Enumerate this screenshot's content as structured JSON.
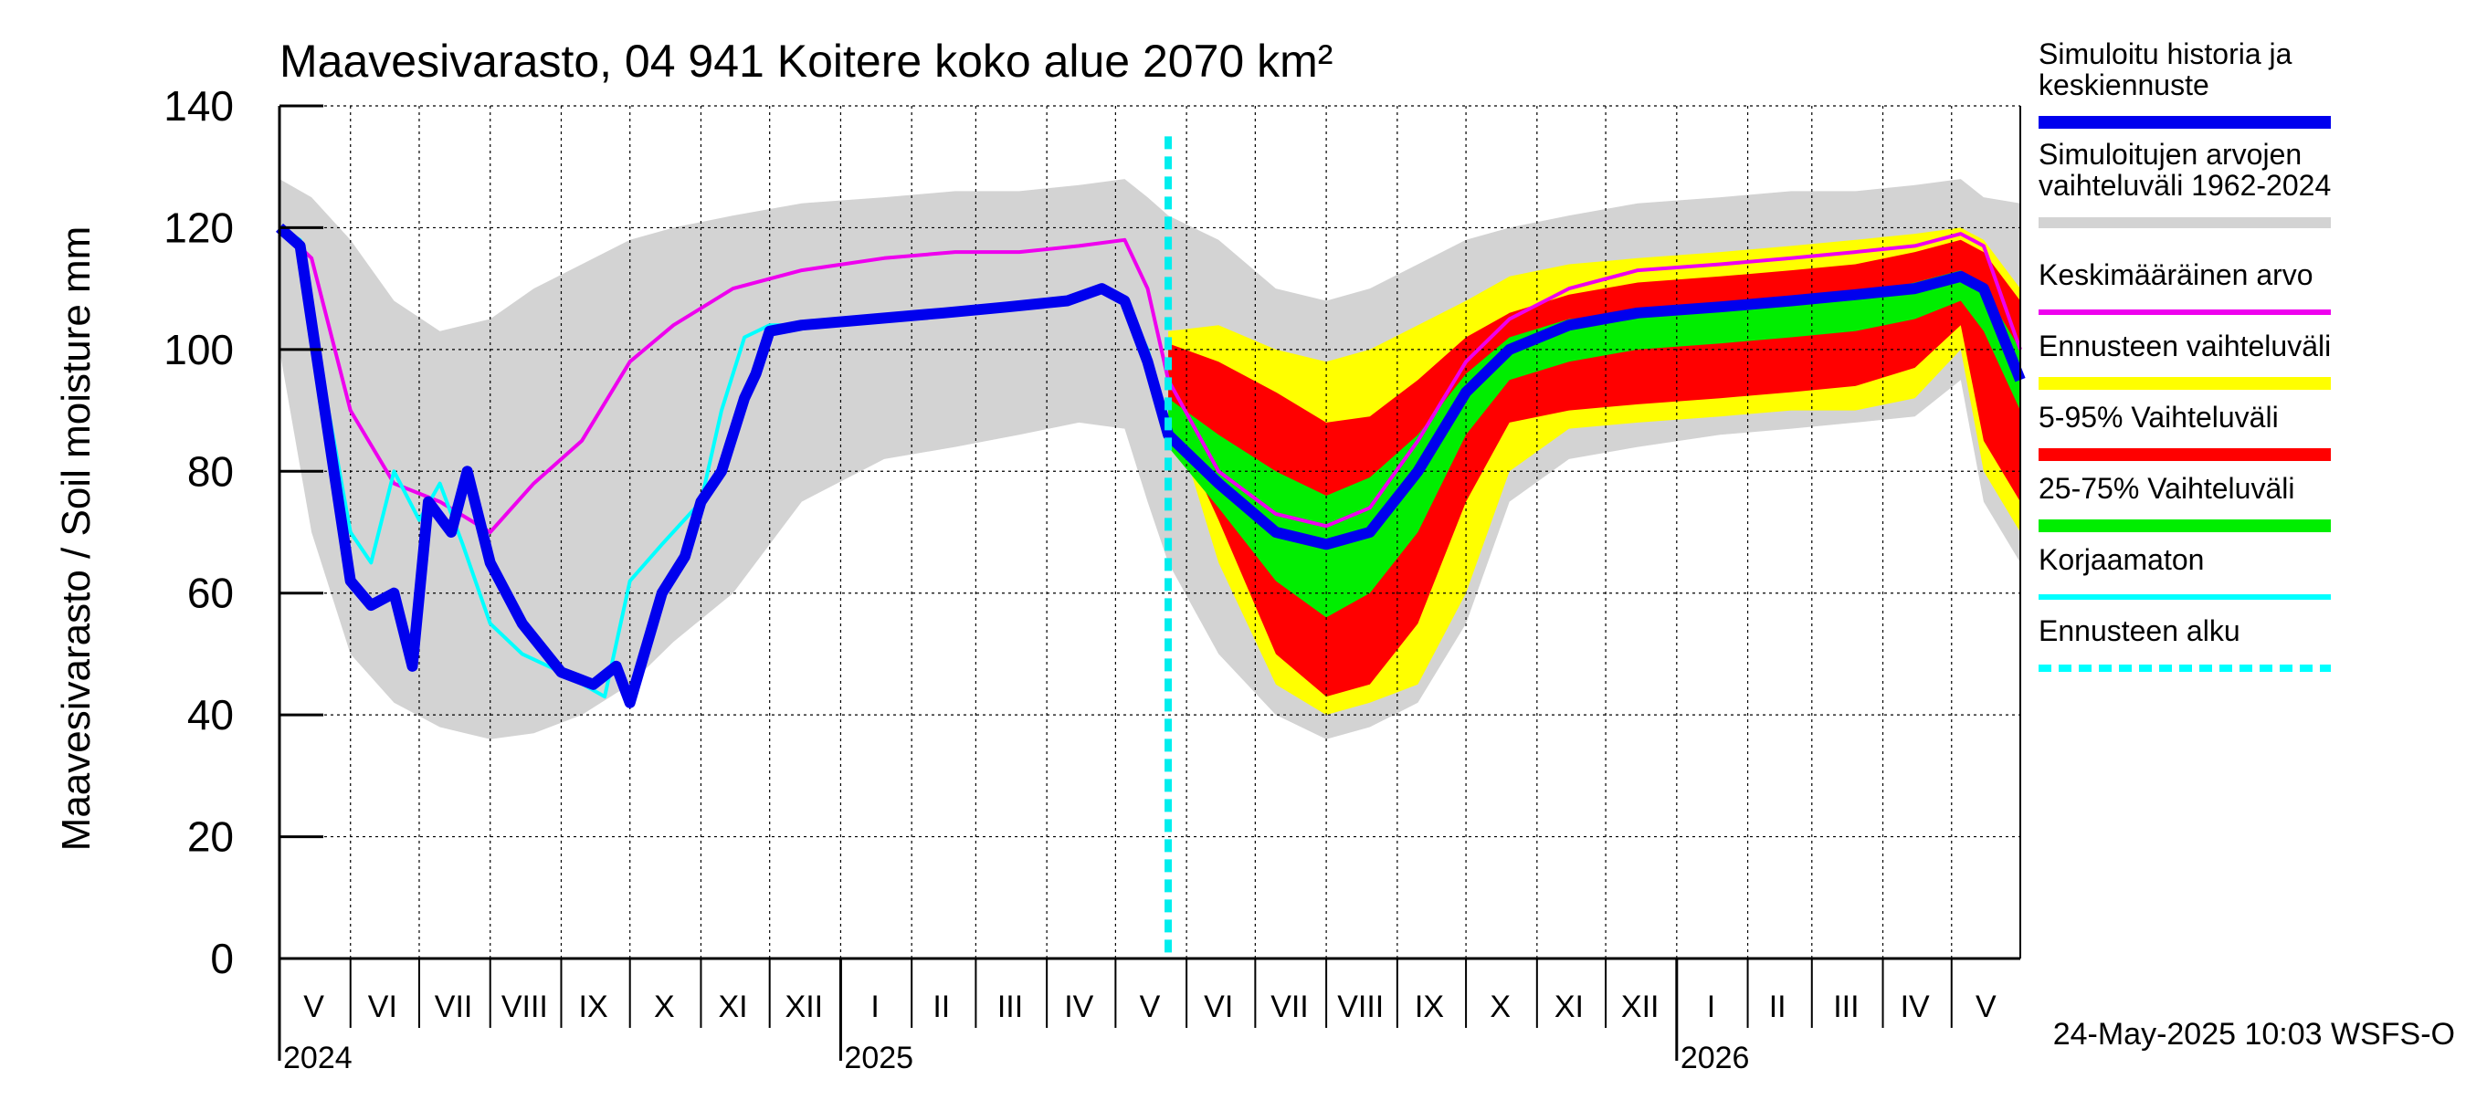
{
  "chart_data": {
    "type": "area",
    "title": "Maavesivarasto, 04 941 Koitere koko alue 2070 km²",
    "ylabel": "Maavesivarasto / Soil moisture   mm",
    "ylim": [
      0,
      140
    ],
    "yticks": [
      0,
      20,
      40,
      60,
      80,
      100,
      120,
      140
    ],
    "xlim": [
      "2024-05-01",
      "2026-05-31"
    ],
    "months": [
      {
        "label": "V",
        "mid": "2024-05-16"
      },
      {
        "label": "VI",
        "mid": "2024-06-15"
      },
      {
        "label": "VII",
        "mid": "2024-07-16"
      },
      {
        "label": "VIII",
        "mid": "2024-08-16"
      },
      {
        "label": "IX",
        "mid": "2024-09-15"
      },
      {
        "label": "X",
        "mid": "2024-10-16"
      },
      {
        "label": "XI",
        "mid": "2024-11-15"
      },
      {
        "label": "XII",
        "mid": "2024-12-16"
      },
      {
        "label": "I",
        "mid": "2025-01-16"
      },
      {
        "label": "II",
        "mid": "2025-02-14"
      },
      {
        "label": "III",
        "mid": "2025-03-16"
      },
      {
        "label": "IV",
        "mid": "2025-04-15"
      },
      {
        "label": "V",
        "mid": "2025-05-16"
      },
      {
        "label": "VI",
        "mid": "2025-06-15"
      },
      {
        "label": "VII",
        "mid": "2025-07-16"
      },
      {
        "label": "VIII",
        "mid": "2025-08-16"
      },
      {
        "label": "IX",
        "mid": "2025-09-15"
      },
      {
        "label": "X",
        "mid": "2025-10-16"
      },
      {
        "label": "XI",
        "mid": "2025-11-15"
      },
      {
        "label": "XII",
        "mid": "2025-12-16"
      },
      {
        "label": "I",
        "mid": "2026-01-16"
      },
      {
        "label": "II",
        "mid": "2026-02-14"
      },
      {
        "label": "III",
        "mid": "2026-03-16"
      },
      {
        "label": "IV",
        "mid": "2026-04-15"
      },
      {
        "label": "V",
        "mid": "2026-05-16"
      }
    ],
    "month_starts": [
      "2024-06-01",
      "2024-07-01",
      "2024-08-01",
      "2024-09-01",
      "2024-10-01",
      "2024-11-01",
      "2024-12-01",
      "2025-01-01",
      "2025-02-01",
      "2025-03-01",
      "2025-04-01",
      "2025-05-01",
      "2025-06-01",
      "2025-07-01",
      "2025-08-01",
      "2025-09-01",
      "2025-10-01",
      "2025-11-01",
      "2025-12-01",
      "2026-01-01",
      "2026-02-01",
      "2026-03-01",
      "2026-04-01",
      "2026-05-01"
    ],
    "years": [
      {
        "label": "2024",
        "start": "2024-05-01"
      },
      {
        "label": "2025",
        "start": "2025-01-01"
      },
      {
        "label": "2026",
        "start": "2026-01-01"
      }
    ],
    "forecast_start": "2025-05-24",
    "footer": "24-May-2025 10:03 WSFS-O",
    "legend": [
      {
        "label": "Simuloitu historia ja keskiennuste",
        "color": "#0000ee"
      },
      {
        "label": "Simuloitujen arvojen vaihteluväli 1962-2024",
        "color": "#d3d3d3"
      },
      {
        "label": "Keskimääräinen arvo",
        "color": "#ee00ee"
      },
      {
        "label": "Ennusteen vaihteluväli",
        "color": "#ffff00"
      },
      {
        "label": "5-95% Vaihteluväli",
        "color": "#ff0000"
      },
      {
        "label": "25-75% Vaihteluväli",
        "color": "#00ee00"
      },
      {
        "label": "Korjaamaton",
        "color": "#00ffff"
      },
      {
        "label": "Ennusteen alku",
        "color": "#00ffff"
      }
    ],
    "series": [
      {
        "name": "Simuloitujen arvojen vaihteluväli 1962-2024",
        "x": [
          "2024-05-01",
          "2024-05-15",
          "2024-06-01",
          "2024-06-20",
          "2024-07-10",
          "2024-08-01",
          "2024-08-20",
          "2024-09-10",
          "2024-10-01",
          "2024-10-20",
          "2024-11-15",
          "2024-12-15",
          "2025-01-20",
          "2025-02-20",
          "2025-03-20",
          "2025-04-15",
          "2025-05-05",
          "2025-05-15",
          "2025-05-24",
          "2025-06-15",
          "2025-07-10",
          "2025-08-01",
          "2025-08-20",
          "2025-09-10",
          "2025-10-01",
          "2025-10-20",
          "2025-11-15",
          "2025-12-15",
          "2026-01-20",
          "2026-02-20",
          "2026-03-20",
          "2026-04-15",
          "2026-05-05",
          "2026-05-15",
          "2026-05-31"
        ],
        "upper": [
          128,
          125,
          118,
          108,
          103,
          105,
          110,
          114,
          118,
          120,
          122,
          124,
          125,
          126,
          126,
          127,
          128,
          125,
          122,
          118,
          110,
          108,
          110,
          114,
          118,
          120,
          122,
          124,
          125,
          126,
          126,
          127,
          128,
          125,
          124
        ],
        "lower": [
          100,
          70,
          50,
          42,
          38,
          36,
          37,
          40,
          45,
          52,
          60,
          75,
          82,
          84,
          86,
          88,
          87,
          75,
          65,
          50,
          40,
          36,
          38,
          42,
          55,
          75,
          82,
          84,
          86,
          87,
          88,
          89,
          95,
          75,
          65
        ]
      },
      {
        "name": "Ennusteen vaihteluväli",
        "x": [
          "2025-05-24",
          "2025-06-15",
          "2025-07-10",
          "2025-08-01",
          "2025-08-20",
          "2025-09-10",
          "2025-10-01",
          "2025-10-20",
          "2025-11-15",
          "2025-12-15",
          "2026-01-20",
          "2026-02-20",
          "2026-03-20",
          "2026-04-15",
          "2026-05-05",
          "2026-05-15",
          "2026-05-31"
        ],
        "upper": [
          103,
          104,
          100,
          98,
          100,
          104,
          108,
          112,
          114,
          115,
          116,
          117,
          118,
          119,
          120,
          118,
          110
        ],
        "lower": [
          92,
          65,
          45,
          40,
          42,
          45,
          60,
          80,
          87,
          88,
          89,
          90,
          90,
          92,
          100,
          80,
          70
        ]
      },
      {
        "name": "5-95% Vaihteluväli",
        "x": [
          "2025-05-24",
          "2025-06-15",
          "2025-07-10",
          "2025-08-01",
          "2025-08-20",
          "2025-09-10",
          "2025-10-01",
          "2025-10-20",
          "2025-11-15",
          "2025-12-15",
          "2026-01-20",
          "2026-02-20",
          "2026-03-20",
          "2026-04-15",
          "2026-05-05",
          "2026-05-15",
          "2026-05-31"
        ],
        "upper": [
          101,
          98,
          93,
          88,
          89,
          95,
          102,
          106,
          109,
          111,
          112,
          113,
          114,
          116,
          118,
          116,
          108
        ],
        "lower": [
          90,
          72,
          50,
          43,
          45,
          55,
          75,
          88,
          90,
          91,
          92,
          93,
          94,
          97,
          104,
          85,
          75
        ]
      },
      {
        "name": "25-75% Vaihteluväli",
        "x": [
          "2025-05-24",
          "2025-06-15",
          "2025-07-10",
          "2025-08-01",
          "2025-08-20",
          "2025-09-10",
          "2025-10-01",
          "2025-10-20",
          "2025-11-15",
          "2025-12-15",
          "2026-01-20",
          "2026-02-20",
          "2026-03-20",
          "2026-04-15",
          "2026-05-05",
          "2026-05-15",
          "2026-05-31"
        ],
        "upper": [
          92,
          86,
          80,
          76,
          79,
          86,
          96,
          102,
          105,
          106,
          107,
          108,
          109,
          111,
          113,
          110,
          100
        ],
        "lower": [
          84,
          74,
          62,
          56,
          60,
          70,
          86,
          95,
          98,
          100,
          101,
          102,
          103,
          105,
          108,
          103,
          90
        ]
      },
      {
        "name": "Keskimääräinen arvo",
        "x": [
          "2024-05-01",
          "2024-05-15",
          "2024-06-01",
          "2024-06-20",
          "2024-07-10",
          "2024-08-01",
          "2024-08-20",
          "2024-09-10",
          "2024-10-01",
          "2024-10-20",
          "2024-11-15",
          "2024-12-15",
          "2025-01-20",
          "2025-02-20",
          "2025-03-20",
          "2025-04-15",
          "2025-05-05",
          "2025-05-15",
          "2025-05-24",
          "2025-06-15",
          "2025-07-10",
          "2025-08-01",
          "2025-08-20",
          "2025-09-10",
          "2025-10-01",
          "2025-10-20",
          "2025-11-15",
          "2025-12-15",
          "2026-01-20",
          "2026-02-20",
          "2026-03-20",
          "2026-04-15",
          "2026-05-05",
          "2026-05-15",
          "2026-05-31"
        ],
        "y": [
          120,
          115,
          90,
          78,
          75,
          70,
          78,
          85,
          98,
          104,
          110,
          113,
          115,
          116,
          116,
          117,
          118,
          110,
          95,
          80,
          73,
          71,
          74,
          85,
          98,
          105,
          110,
          113,
          114,
          115,
          116,
          117,
          119,
          117,
          100
        ]
      },
      {
        "name": "Korjaamaton",
        "x": [
          "2024-05-01",
          "2024-05-10",
          "2024-05-20",
          "2024-06-01",
          "2024-06-10",
          "2024-06-20",
          "2024-07-01",
          "2024-07-10",
          "2024-07-20",
          "2024-08-01",
          "2024-08-15",
          "2024-09-01",
          "2024-09-20",
          "2024-10-01",
          "2024-10-15",
          "2024-11-01",
          "2024-11-10",
          "2024-11-20",
          "2024-12-01",
          "2024-12-15",
          "2025-01-15",
          "2025-02-15",
          "2025-03-15",
          "2025-04-10",
          "2025-04-25",
          "2025-05-05",
          "2025-05-15",
          "2025-05-24"
        ],
        "y": [
          120,
          118,
          95,
          70,
          65,
          80,
          72,
          78,
          68,
          55,
          50,
          47,
          43,
          62,
          68,
          75,
          90,
          102,
          104,
          104,
          105,
          106,
          107,
          108,
          110,
          108,
          100,
          88
        ]
      },
      {
        "name": "Simuloitu historia ja keskiennuste",
        "x": [
          "2024-05-01",
          "2024-05-10",
          "2024-05-20",
          "2024-06-01",
          "2024-06-10",
          "2024-06-20",
          "2024-06-28",
          "2024-07-05",
          "2024-07-15",
          "2024-07-22",
          "2024-08-01",
          "2024-08-15",
          "2024-09-01",
          "2024-09-15",
          "2024-09-25",
          "2024-10-01",
          "2024-10-15",
          "2024-10-25",
          "2024-11-01",
          "2024-11-10",
          "2024-11-20",
          "2024-11-25",
          "2024-12-01",
          "2024-12-15",
          "2025-01-15",
          "2025-02-15",
          "2025-03-15",
          "2025-04-10",
          "2025-04-25",
          "2025-05-05",
          "2025-05-15",
          "2025-05-24",
          "2025-06-15",
          "2025-07-10",
          "2025-08-01",
          "2025-08-20",
          "2025-09-10",
          "2025-10-01",
          "2025-10-20",
          "2025-11-15",
          "2025-12-15",
          "2026-01-20",
          "2026-02-20",
          "2026-03-20",
          "2026-04-15",
          "2026-05-05",
          "2026-05-15",
          "2026-05-31"
        ],
        "y": [
          120,
          117,
          92,
          62,
          58,
          60,
          48,
          75,
          70,
          80,
          65,
          55,
          47,
          45,
          48,
          42,
          60,
          66,
          75,
          80,
          92,
          96,
          103,
          104,
          105,
          106,
          107,
          108,
          110,
          108,
          98,
          86,
          78,
          70,
          68,
          70,
          80,
          93,
          100,
          104,
          106,
          107,
          108,
          109,
          110,
          112,
          110,
          95
        ]
      }
    ]
  }
}
